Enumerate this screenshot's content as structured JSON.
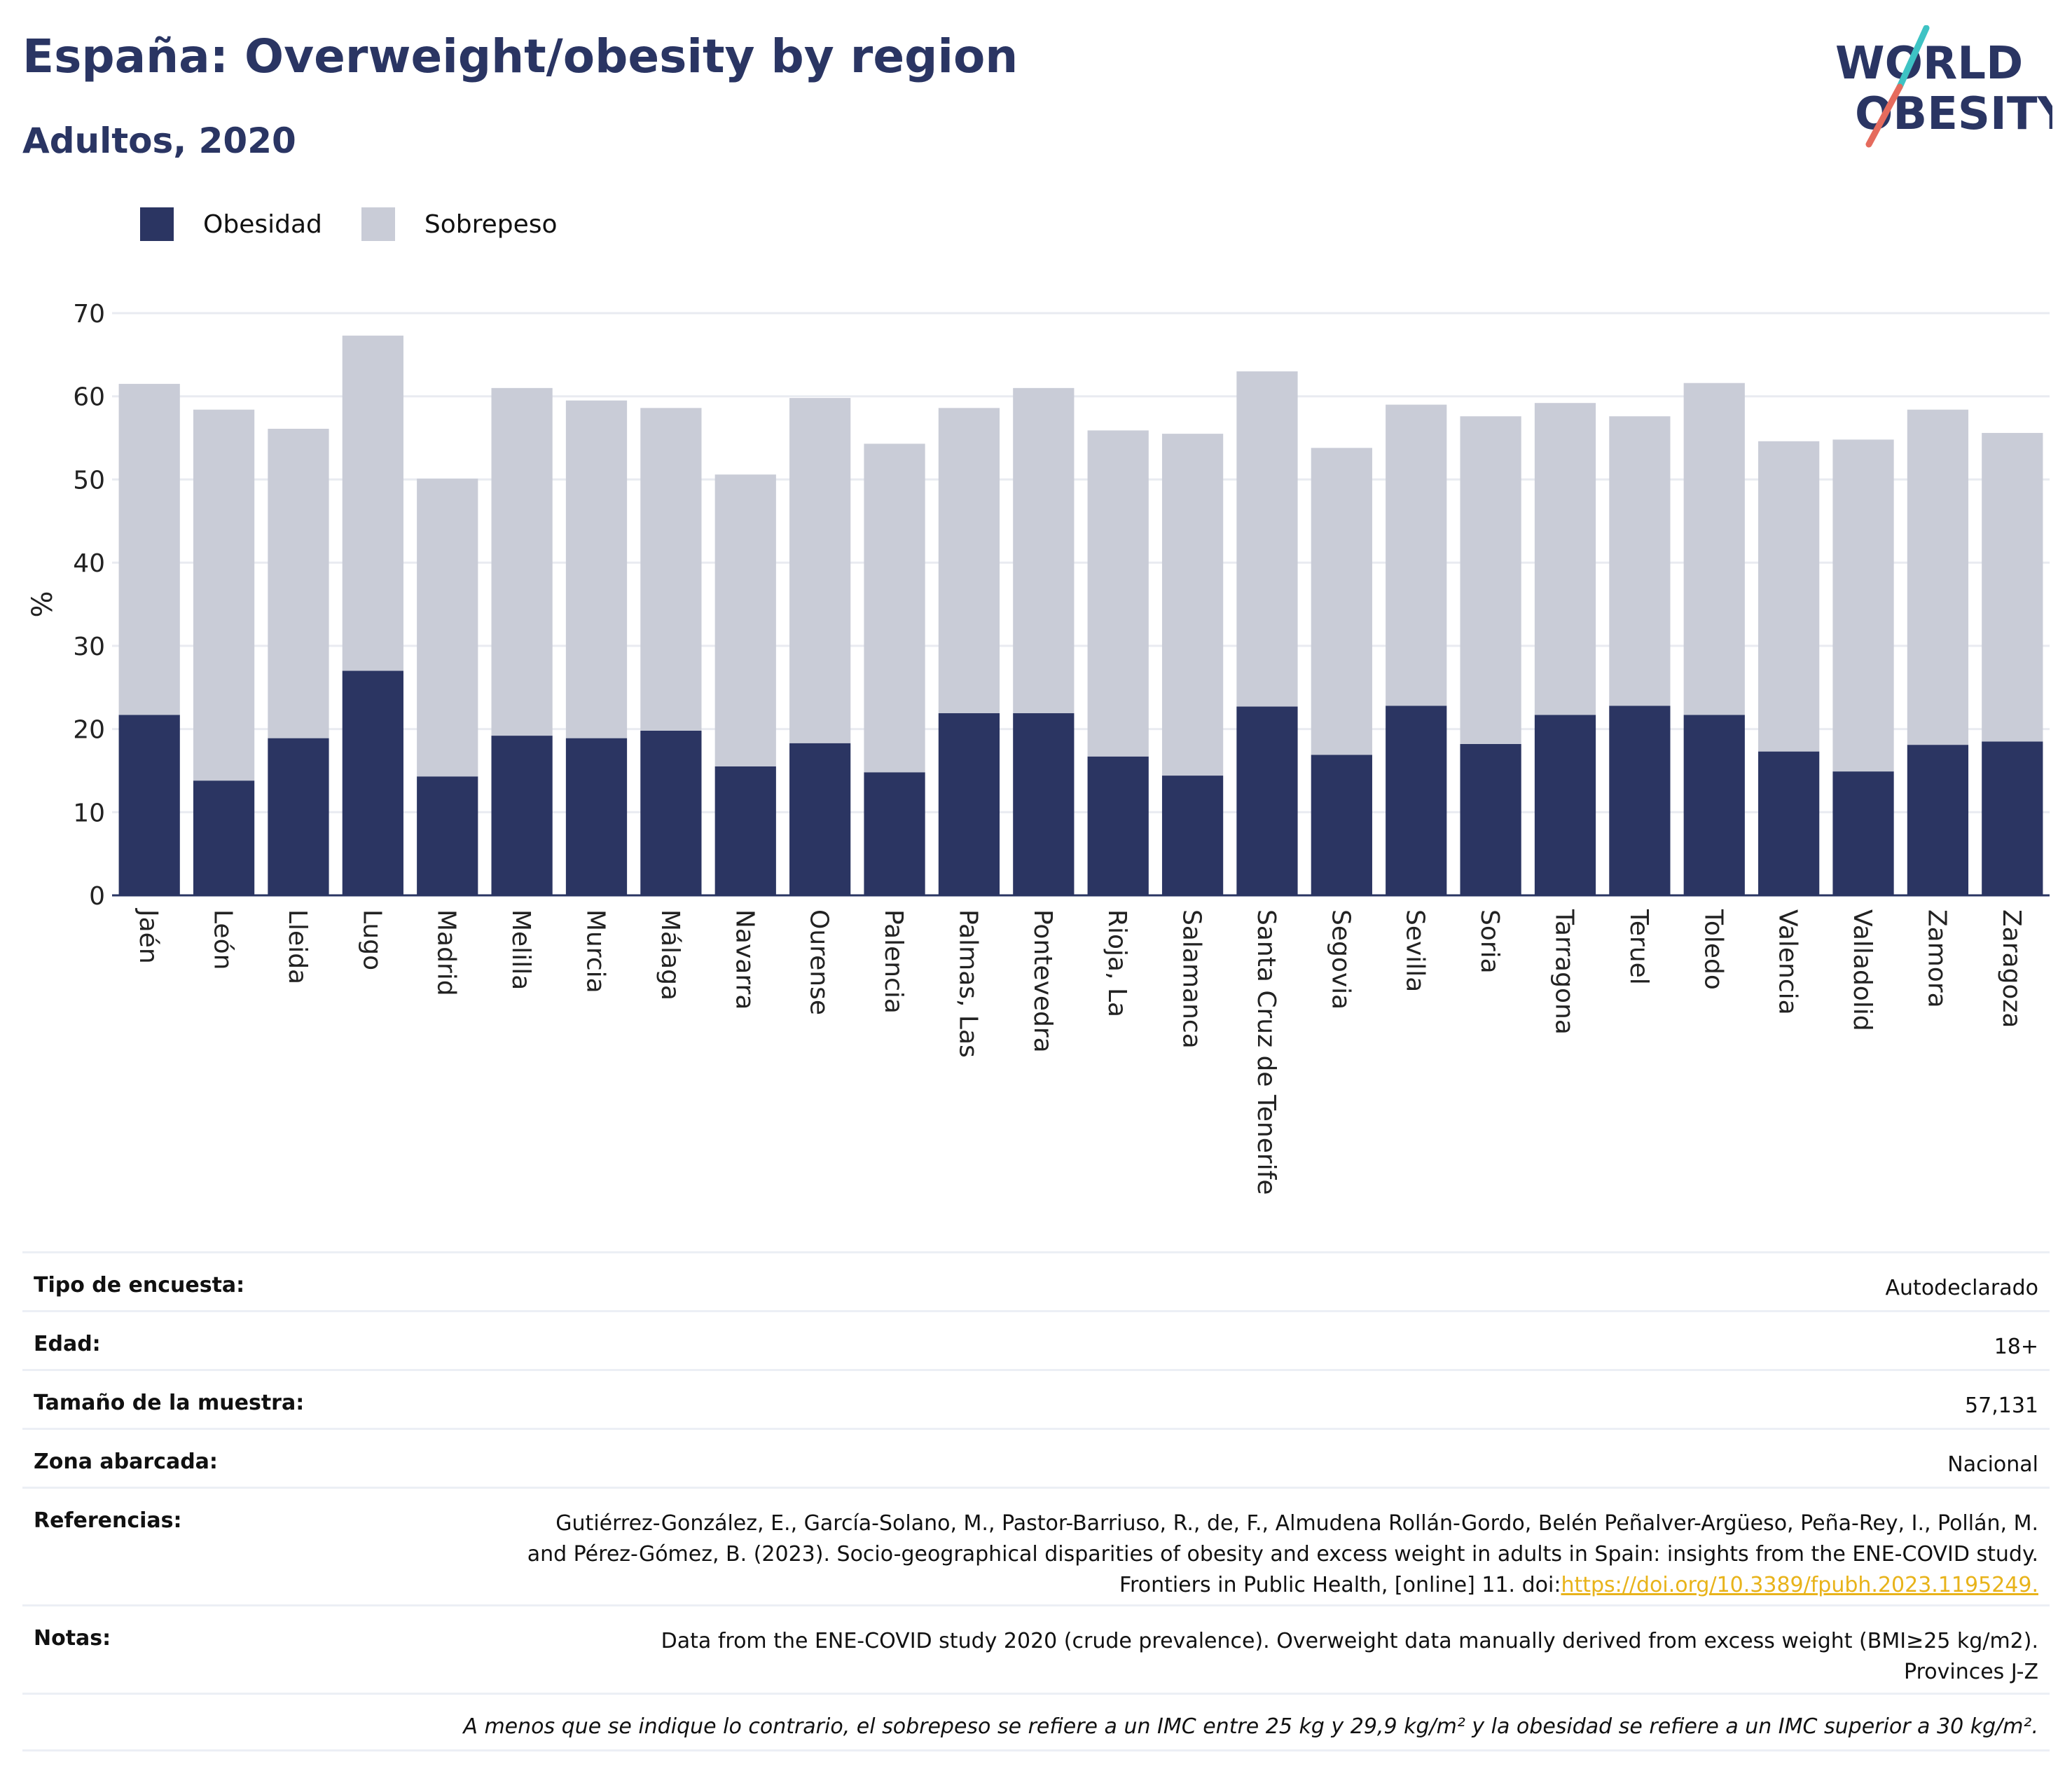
{
  "title": "España: Overweight/obesity by region",
  "subtitle": "Adultos, 2020",
  "logo": {
    "line1": "WORLD",
    "line2": "OBESITY"
  },
  "colors": {
    "obesidad": "#2b3562",
    "sobrepeso": "#c9ccd7",
    "accent_teal": "#3ec3c4",
    "accent_red": "#e56b5d",
    "grid": "#e9ebf1",
    "link": "#e8b31a"
  },
  "legend": [
    {
      "label": "Obesidad",
      "color": "#2b3562"
    },
    {
      "label": "Sobrepeso",
      "color": "#c9ccd7"
    }
  ],
  "chart_data": {
    "type": "bar",
    "stacked": true,
    "ylabel": "%",
    "ylim": [
      0,
      70
    ],
    "yticks": [
      0,
      10,
      20,
      30,
      40,
      50,
      60,
      70
    ],
    "grid": true,
    "legend_position": "top-left",
    "categories": [
      "Jaén",
      "León",
      "Lleida",
      "Lugo",
      "Madrid",
      "Melilla",
      "Murcia",
      "Málaga",
      "Navarra",
      "Ourense",
      "Palencia",
      "Palmas, Las",
      "Pontevedra",
      "Rioja, La",
      "Salamanca",
      "Santa Cruz de Tenerife",
      "Segovia",
      "Sevilla",
      "Soria",
      "Tarragona",
      "Teruel",
      "Toledo",
      "Valencia",
      "Valladolid",
      "Zamora",
      "Zaragoza"
    ],
    "series": [
      {
        "name": "Obesidad",
        "values": [
          21.7,
          13.8,
          18.9,
          27.0,
          14.3,
          19.2,
          18.9,
          19.8,
          15.5,
          18.3,
          14.8,
          21.9,
          21.9,
          16.7,
          14.4,
          22.7,
          16.9,
          22.8,
          18.2,
          21.7,
          22.8,
          21.7,
          17.3,
          14.9,
          18.1,
          18.5
        ]
      },
      {
        "name": "Sobrepeso",
        "values": [
          39.8,
          44.6,
          37.2,
          40.3,
          35.8,
          41.8,
          40.6,
          38.8,
          35.1,
          41.5,
          39.5,
          36.7,
          39.1,
          39.2,
          41.1,
          40.3,
          36.9,
          36.2,
          39.4,
          37.5,
          34.8,
          39.9,
          37.3,
          39.9,
          40.3,
          37.1
        ]
      }
    ]
  },
  "metadata": [
    {
      "label": "Tipo de encuesta:",
      "value": "Autodeclarado"
    },
    {
      "label": "Edad:",
      "value": "18+"
    },
    {
      "label": "Tamaño de la muestra:",
      "value": "57,131"
    },
    {
      "label": "Zona abarcada:",
      "value": "Nacional"
    }
  ],
  "references": {
    "label": "Referencias:",
    "text": "Gutiérrez-González, E., García-Solano, M., Pastor-Barriuso, R., de, F., Almudena Rollán-Gordo, Belén Peñalver-Argüeso, Peña-Rey, I., Pollán, M. and Pérez-Gómez, B. (2023). Socio-geographical disparities of obesity and excess weight in adults in Spain: insights from the ENE-COVID study. Frontiers in Public Health, [online] 11. doi:",
    "link": "https://doi.org/10.3389/fpubh.2023.1195249."
  },
  "notes": {
    "label": "Notas:",
    "line1": "Data from the ENE-COVID study 2020 (crude prevalence). Overweight data manually derived from excess weight (BMI≥25 kg/m2).",
    "line2": "Provinces J-Z"
  },
  "footnote": "A menos que se indique lo contrario, el sobrepeso se refiere a un IMC entre 25 kg y 29,9 kg/m² y la obesidad se refiere a un IMC superior a 30 kg/m²."
}
